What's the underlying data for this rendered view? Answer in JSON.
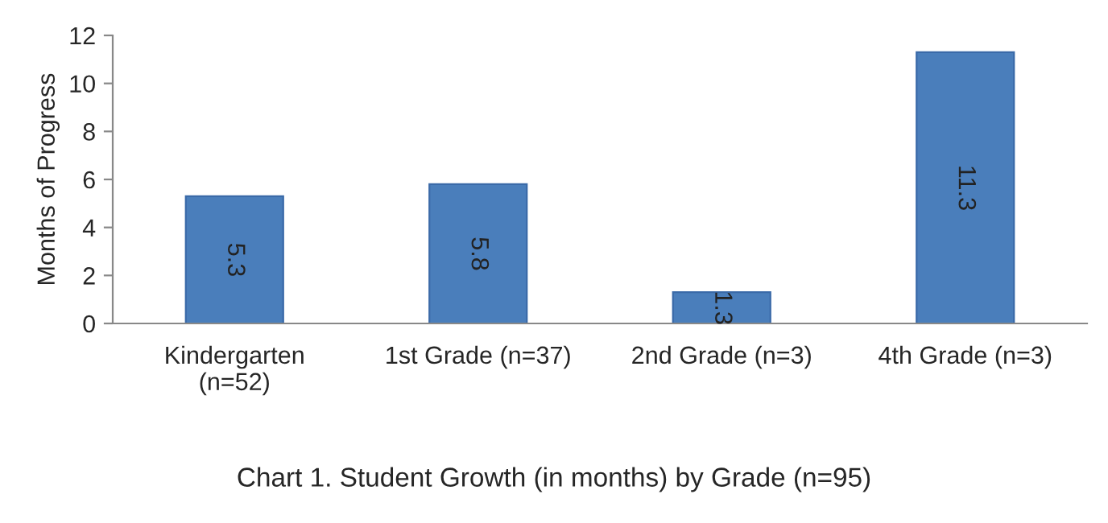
{
  "chart_data": {
    "type": "bar",
    "title": "Chart 1. Student Growth (in months) by Grade (n=95)",
    "ylabel": "Months of Progress",
    "categories": [
      "Kindergarten\n(n=52)",
      "1st Grade (n=37)",
      "2nd Grade (n=3)",
      "4th Grade (n=3)"
    ],
    "values": [
      5.3,
      5.8,
      1.3,
      11.3
    ],
    "color": "#4a7ebb",
    "ylim": [
      0,
      12
    ],
    "yticks": [
      0,
      2,
      4,
      6,
      8,
      10,
      12
    ],
    "grid": false,
    "data_labels": true
  }
}
